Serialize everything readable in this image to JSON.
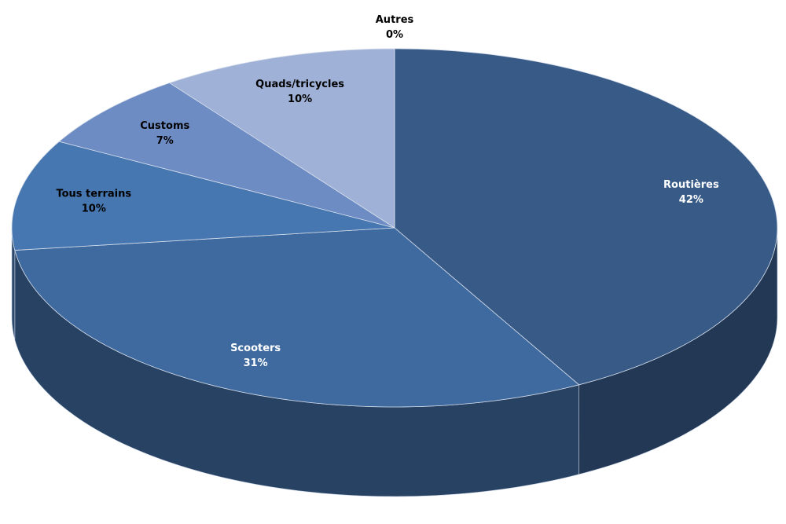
{
  "chart_data": {
    "type": "pie",
    "categories": [
      "Routières",
      "Scooters",
      "Tous terrains",
      "Customs",
      "Quads/tricycles",
      "Autres"
    ],
    "values": [
      42,
      31,
      10,
      7,
      10,
      0
    ],
    "value_labels": [
      "42%",
      "31%",
      "10%",
      "7%",
      "10%",
      "0%"
    ],
    "colors": [
      "#375a87",
      "#3f6a9f",
      "#4677b0",
      "#6d8cc4",
      "#9fb1d6",
      "#b8c6e2"
    ]
  }
}
